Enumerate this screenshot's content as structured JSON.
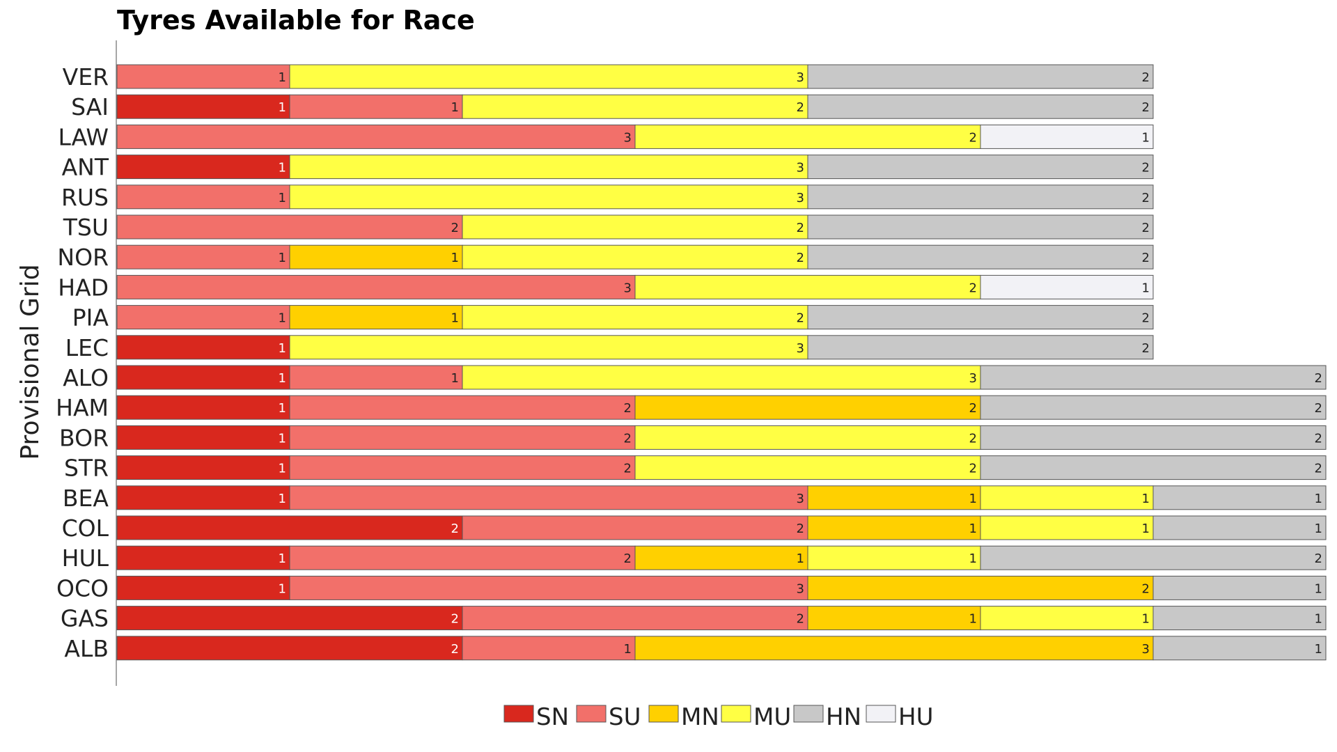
{
  "chart_data": {
    "type": "bar",
    "orientation": "horizontal",
    "stacked": true,
    "title": "Tyres Available for Race",
    "ylabel": "Provisional Grid",
    "xlabel": "",
    "categories": [
      "VER",
      "SAI",
      "LAW",
      "ANT",
      "RUS",
      "TSU",
      "NOR",
      "HAD",
      "PIA",
      "LEC",
      "ALO",
      "HAM",
      "BOR",
      "STR",
      "BEA",
      "COL",
      "HUL",
      "OCO",
      "GAS",
      "ALB"
    ],
    "series": [
      {
        "name": "SN",
        "color": "#d9281e",
        "values": [
          0,
          1,
          0,
          1,
          0,
          0,
          0,
          0,
          0,
          1,
          1,
          1,
          1,
          1,
          1,
          2,
          1,
          1,
          2,
          2
        ]
      },
      {
        "name": "SU",
        "color": "#f2706a",
        "values": [
          1,
          1,
          3,
          0,
          1,
          2,
          1,
          3,
          1,
          0,
          1,
          2,
          2,
          2,
          3,
          2,
          2,
          3,
          2,
          1
        ]
      },
      {
        "name": "MN",
        "color": "#ffd000",
        "values": [
          0,
          0,
          0,
          0,
          0,
          0,
          1,
          0,
          1,
          0,
          0,
          2,
          0,
          0,
          1,
          1,
          1,
          2,
          1,
          3
        ]
      },
      {
        "name": "MU",
        "color": "#ffff44",
        "values": [
          3,
          2,
          2,
          3,
          3,
          2,
          2,
          2,
          2,
          3,
          3,
          0,
          2,
          2,
          1,
          1,
          1,
          0,
          1,
          0
        ]
      },
      {
        "name": "HN",
        "color": "#c8c8c8",
        "values": [
          2,
          2,
          0,
          2,
          2,
          2,
          2,
          0,
          2,
          2,
          2,
          2,
          2,
          2,
          1,
          1,
          2,
          1,
          1,
          1
        ]
      },
      {
        "name": "HU",
        "color": "#f2f2f6",
        "values": [
          0,
          0,
          1,
          0,
          0,
          0,
          0,
          1,
          0,
          0,
          0,
          0,
          0,
          0,
          0,
          0,
          0,
          0,
          0,
          0
        ]
      }
    ],
    "xlim": [
      0,
      7
    ],
    "grid": false,
    "legend": "bottom-center"
  }
}
